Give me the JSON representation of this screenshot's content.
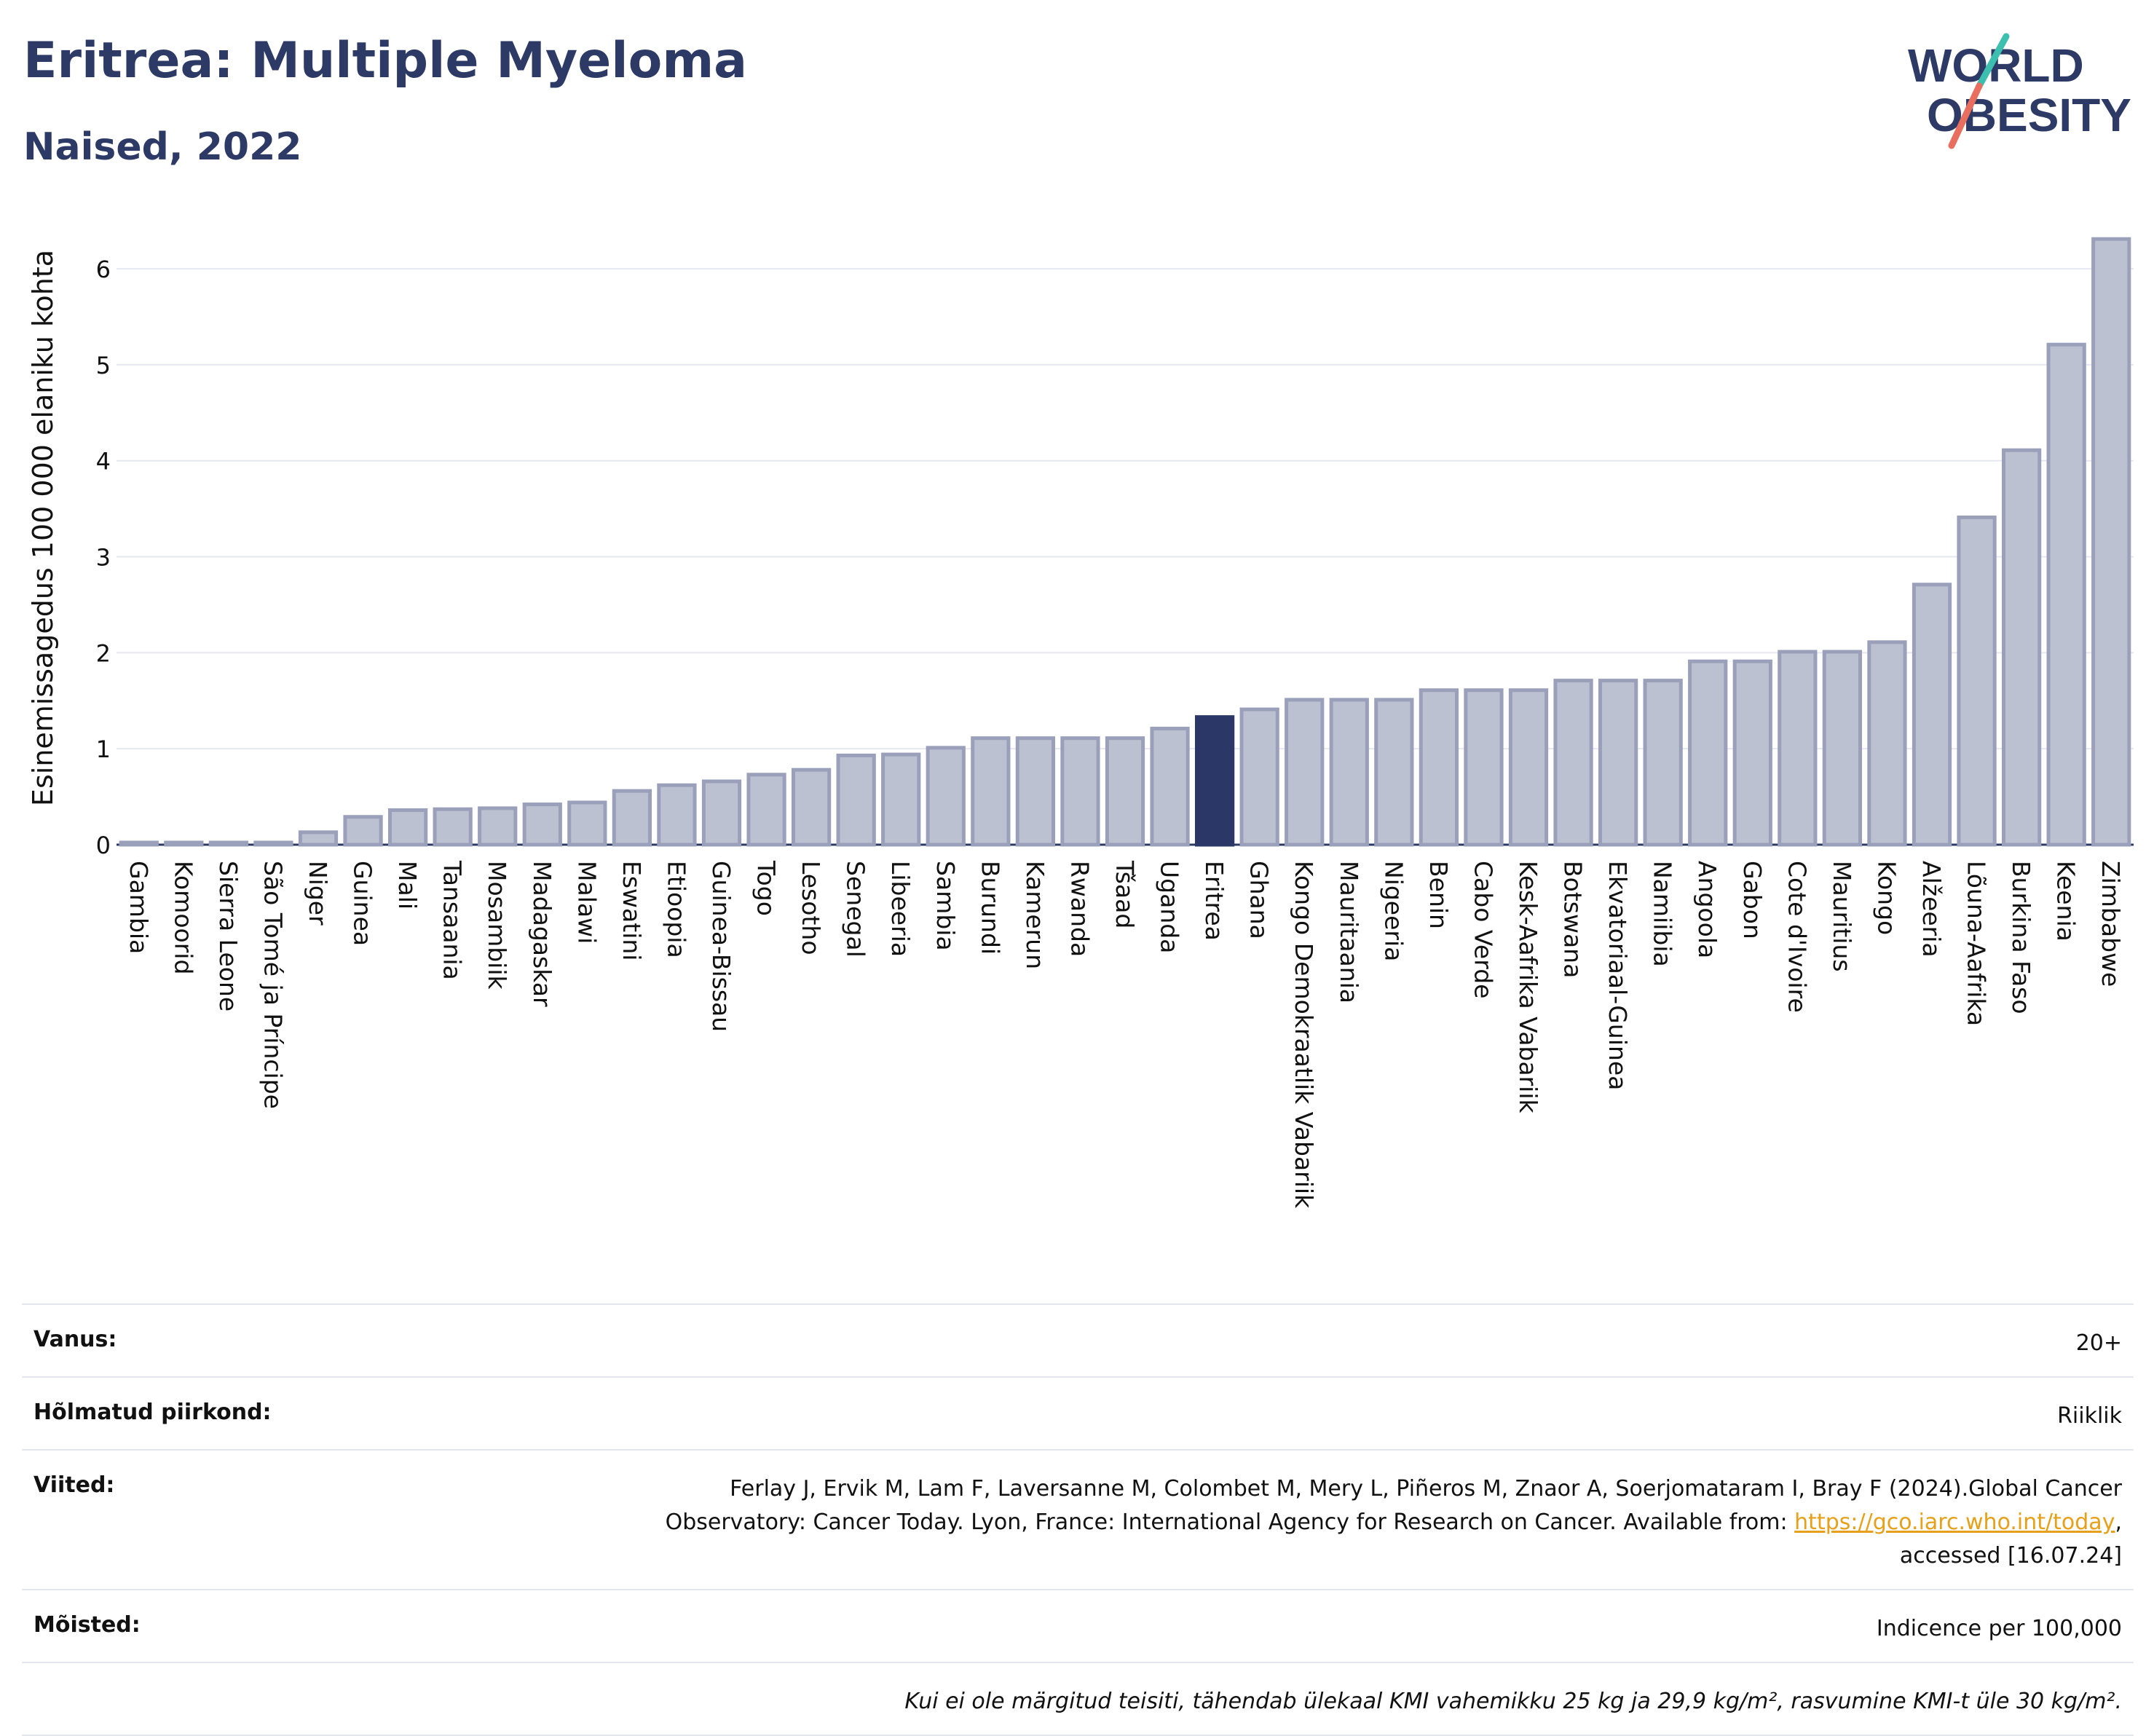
{
  "header": {
    "title": "Eritrea: Multiple Myeloma",
    "subtitle": "Naised, 2022"
  },
  "logo": {
    "line1": "WORLD",
    "line2": "OBESITY"
  },
  "colors": {
    "bar": "#bcc1d1",
    "bar_border": "#9aa0ba",
    "highlight": "#2b3766",
    "text": "#2d3a66",
    "grid": "#e6e8f0",
    "logo_slash_teal": "#3dbfb0",
    "logo_slash_coral": "#e86f5f"
  },
  "chart_data": {
    "type": "bar",
    "ylabel": "Esinemissagedus 100 000 elaniku kohta",
    "ylim": [
      0,
      6.6
    ],
    "yticks": [
      0,
      1,
      2,
      3,
      4,
      5,
      6
    ],
    "highlight": "Eritrea",
    "categories": [
      "Gambia",
      "Komoorid",
      "Sierra Leone",
      "São Tomé ja Príncipe",
      "Niger",
      "Guinea",
      "Mali",
      "Tansaania",
      "Mosambiik",
      "Madagaskar",
      "Malawi",
      "Eswatini",
      "Etioopia",
      "Guinea-Bissau",
      "Togo",
      "Lesotho",
      "Senegal",
      "Libeeria",
      "Sambia",
      "Burundi",
      "Kamerun",
      "Rwanda",
      "Tšaad",
      "Uganda",
      "Eritrea",
      "Ghana",
      "Kongo Demokraatlik Vabariik",
      "Mauritaania",
      "Nigeeria",
      "Benin",
      "Cabo Verde",
      "Kesk-Aafrika Vabariik",
      "Botswana",
      "Ekvatoriaal-Guinea",
      "Namiibia",
      "Angoola",
      "Gabon",
      "Cote d'Ivoire",
      "Mauritius",
      "Kongo",
      "Alžeeria",
      "Lõuna-Aafrika",
      "Burkina Faso",
      "Keenia",
      "Zimbabwe"
    ],
    "values": [
      0.02,
      0.02,
      0.02,
      0.02,
      0.13,
      0.29,
      0.36,
      0.37,
      0.38,
      0.42,
      0.44,
      0.56,
      0.62,
      0.66,
      0.73,
      0.78,
      0.93,
      0.94,
      1.01,
      1.11,
      1.11,
      1.11,
      1.11,
      1.21,
      1.33,
      1.41,
      1.51,
      1.51,
      1.51,
      1.61,
      1.61,
      1.61,
      1.71,
      1.71,
      1.71,
      1.91,
      1.91,
      2.01,
      2.01,
      2.11,
      2.71,
      3.41,
      4.11,
      5.21,
      6.31
    ]
  },
  "info": {
    "age_label": "Vanus:",
    "age_value": "20+",
    "region_label": "Hõlmatud piirkond:",
    "region_value": "Riiklik",
    "refs_label": "Viited:",
    "refs_text_1": "Ferlay J, Ervik M, Lam F, Laversanne M, Colombet M, Mery L, Piñeros M, Znaor A, Soerjomataram I, Bray F (2024).Global Cancer Observatory: Cancer Today. Lyon, France: International Agency for Research on Cancer. Available from: ",
    "refs_link": "https://gco.iarc.who.int/today",
    "refs_text_2": ", accessed [16.07.24]",
    "definitions_label": "Mõisted:",
    "definitions_value": "Indicence per 100,000",
    "note": "Kui ei ole märgitud teisiti, tähendab ülekaal KMI vahemikku 25 kg ja 29,9 kg/m², rasvumine KMI-t üle 30 kg/m²."
  }
}
